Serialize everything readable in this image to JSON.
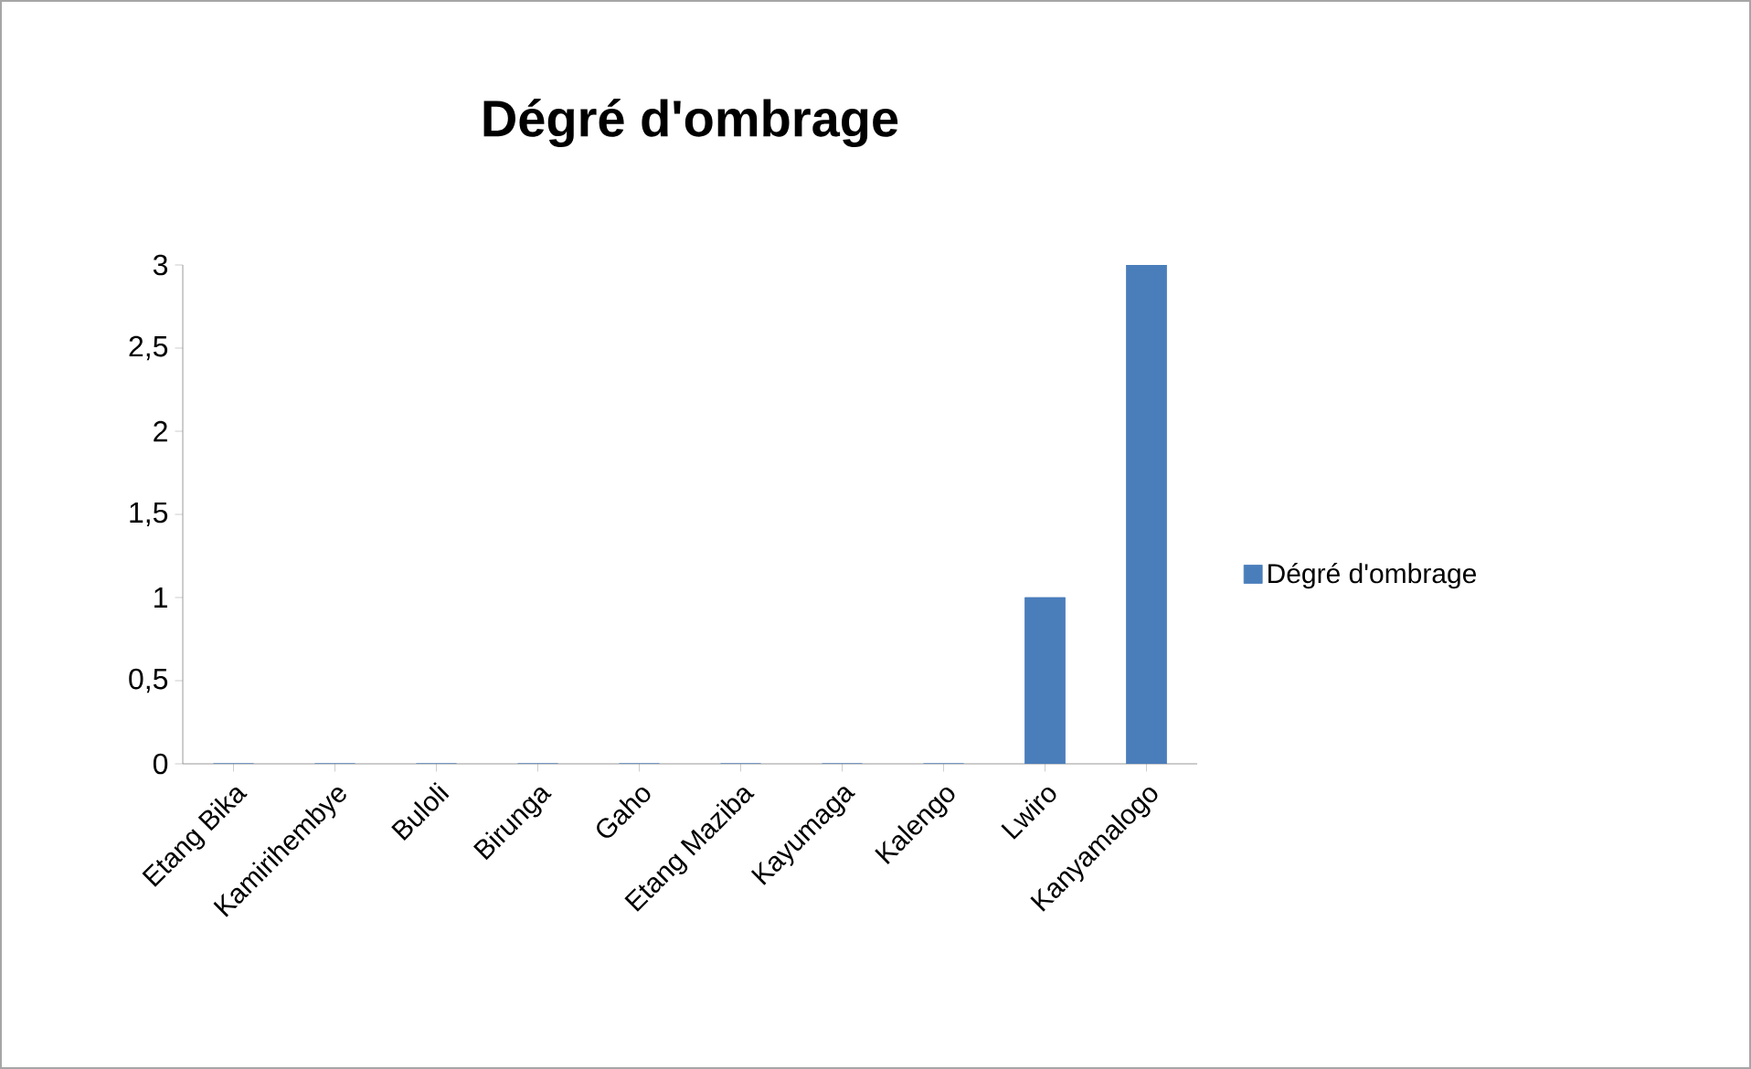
{
  "chart_data": {
    "type": "bar",
    "title": "Dégré d'ombrage",
    "categories": [
      "Etang Bika",
      "Kamirihembye",
      "Buloli",
      "Birunga",
      "Gaho",
      "Etang Maziba",
      "Kayumaga",
      "Kalengo",
      "Lwiro",
      "Kanyamalogo"
    ],
    "series": [
      {
        "name": "Dégré d'ombrage",
        "color": "#4a7ebb",
        "values": [
          0,
          0,
          0,
          0,
          0,
          0,
          0,
          0,
          1,
          3
        ]
      }
    ],
    "ylim": [
      0,
      3
    ],
    "yticks": [
      0,
      {
        "value": 0.5,
        "label": "0,5"
      },
      1,
      {
        "value": 1.5,
        "label": "1,5"
      },
      2,
      {
        "value": 2.5,
        "label": "2,5"
      },
      3
    ],
    "legend": "right",
    "grid": false
  }
}
